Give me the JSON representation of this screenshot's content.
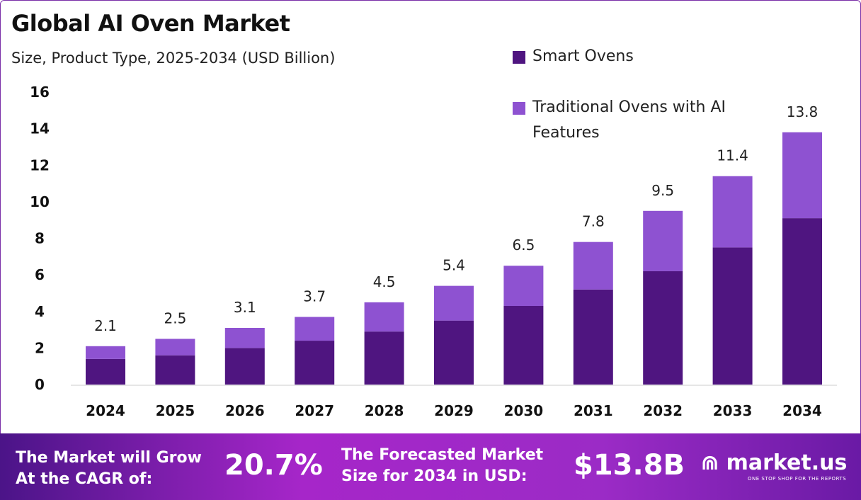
{
  "chart_data": {
    "type": "bar",
    "stacked": true,
    "title": "Global AI Oven Market",
    "subtitle": "Size, Product Type, 2025-2034 (USD Billion)",
    "categories": [
      "2024",
      "2025",
      "2026",
      "2027",
      "2028",
      "2029",
      "2030",
      "2031",
      "2032",
      "2033",
      "2034"
    ],
    "series": [
      {
        "name": "Smart Ovens",
        "color": "#4f1580",
        "values": [
          1.4,
          1.6,
          2.0,
          2.4,
          2.9,
          3.5,
          4.3,
          5.2,
          6.2,
          7.5,
          9.1
        ]
      },
      {
        "name": "Traditional Ovens with AI Features",
        "color": "#8e52d1",
        "values": [
          0.7,
          0.9,
          1.1,
          1.3,
          1.6,
          1.9,
          2.2,
          2.6,
          3.3,
          3.9,
          4.7
        ]
      }
    ],
    "totals": [
      "2.1",
      "2.5",
      "3.1",
      "3.7",
      "4.5",
      "5.4",
      "6.5",
      "7.8",
      "9.5",
      "11.4",
      "13.8"
    ],
    "yticks": [
      "0",
      "2",
      "4",
      "6",
      "8",
      "10",
      "12",
      "14",
      "16"
    ],
    "ylim": [
      0,
      16
    ],
    "grid": false,
    "legend": "top-right"
  },
  "banner": {
    "cagr_label": "The Market will Grow At the CAGR of:",
    "cagr_value": "20.7%",
    "forecast_label": "The Forecasted Market Size for 2034 in USD:",
    "forecast_value": "$13.8B",
    "brand": "market.us",
    "tagline": "ONE STOP SHOP FOR THE REPORTS"
  }
}
